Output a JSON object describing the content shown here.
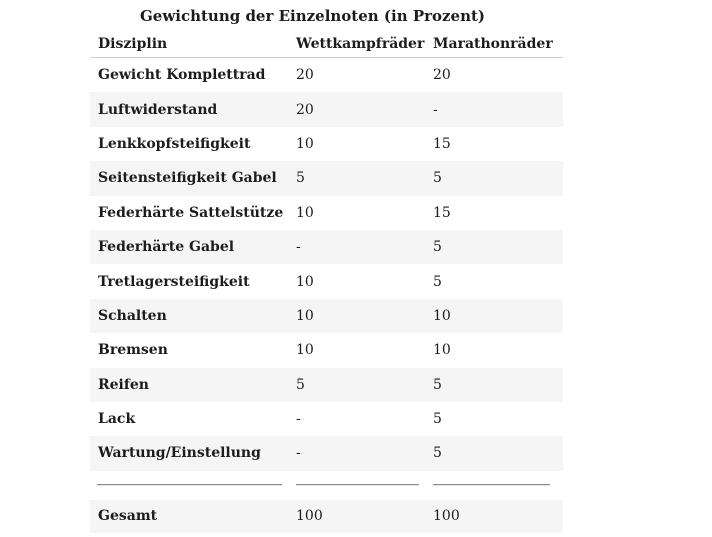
{
  "chart_data": {
    "type": "table",
    "title": "Gewichtung der Einzelnoten (in Prozent)",
    "columns": [
      "Disziplin",
      "Wettkampfräder",
      "Marathonräder"
    ],
    "rows": [
      [
        "Gewicht Komplettrad",
        "20",
        "20"
      ],
      [
        "Luftwiderstand",
        "20",
        "-"
      ],
      [
        "Lenkkopfsteifigkeit",
        "10",
        "15"
      ],
      [
        "Seitensteifigkeit Gabel",
        "5",
        "5"
      ],
      [
        "Federhärte Sattelstütze",
        "10",
        "15"
      ],
      [
        "Federhärte Gabel",
        "-",
        "5"
      ],
      [
        "Tretlagersteifigkeit",
        "10",
        "5"
      ],
      [
        "Schalten",
        "10",
        "10"
      ],
      [
        "Bremsen",
        "10",
        "10"
      ],
      [
        "Reifen",
        "5",
        "5"
      ],
      [
        "Lack",
        "-",
        "5"
      ],
      [
        "Wartung/Einstellung",
        "-",
        "5"
      ]
    ],
    "total_row": [
      "Gesamt",
      "100",
      "100"
    ],
    "layout": {
      "zebra_striping": true,
      "stripe_color": "#f5f5f5",
      "header_rule_color": "#cfcfcf",
      "total_divider_color": "#8e8e8e",
      "text_color": "#1c1c1c",
      "background_color": "#ffffff"
    }
  }
}
